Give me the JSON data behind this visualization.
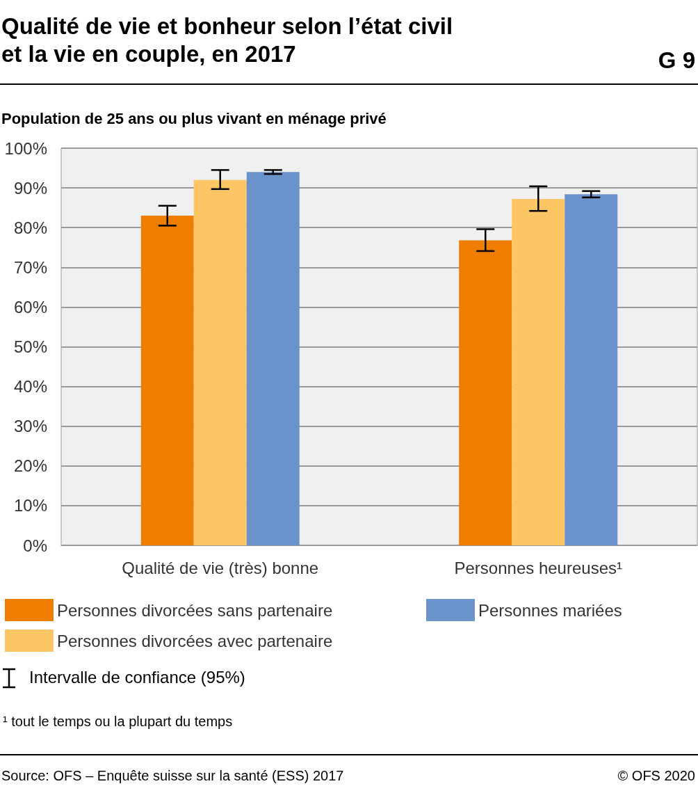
{
  "chart_data": {
    "type": "bar",
    "title": "Qualité de vie et bonheur selon l’état civil\net la vie en couple, en 2017",
    "subtitle": "Population de 25 ans ou plus vivant en ménage privé",
    "categories": [
      "Qualité de vie (très) bonne",
      "Personnes heureuses¹"
    ],
    "series": [
      {
        "name": "Personnes divorcées sans partenaire",
        "color": "#ef7d00",
        "values": [
          83.0,
          76.8
        ],
        "errors": [
          [
            80.5,
            85.5
          ],
          [
            74.1,
            79.6
          ]
        ]
      },
      {
        "name": "Personnes divorcées avec partenaire",
        "color": "#fcc665",
        "values": [
          92.0,
          87.2
        ],
        "errors": [
          [
            89.7,
            94.5
          ],
          [
            84.2,
            90.4
          ]
        ]
      },
      {
        "name": "Personnes mariées",
        "color": "#6a93cb",
        "values": [
          94.0,
          88.4
        ],
        "errors": [
          [
            93.5,
            94.5
          ],
          [
            87.6,
            89.2
          ]
        ]
      }
    ],
    "ylim": [
      0,
      100
    ],
    "yticks": [
      {
        "value": 0,
        "label": "0%"
      },
      {
        "value": 10,
        "label": "10%"
      },
      {
        "value": 20,
        "label": "20%"
      },
      {
        "value": 30,
        "label": "30%"
      },
      {
        "value": 40,
        "label": "40%"
      },
      {
        "value": 50,
        "label": "50%"
      },
      {
        "value": 60,
        "label": "60%"
      },
      {
        "value": 70,
        "label": "70%"
      },
      {
        "value": 80,
        "label": "80%"
      },
      {
        "value": 90,
        "label": "90%"
      },
      {
        "value": 100,
        "label": "100%"
      }
    ],
    "grid": "y",
    "legend": "bottom",
    "annotations": [
      "G 9",
      "Intervalle de confiance (95%)",
      "¹ tout le temps ou la plupart du temps",
      "Source: OFS – Enquête suisse sur la santé (ESS) 2017",
      "© OFS 2020"
    ]
  }
}
